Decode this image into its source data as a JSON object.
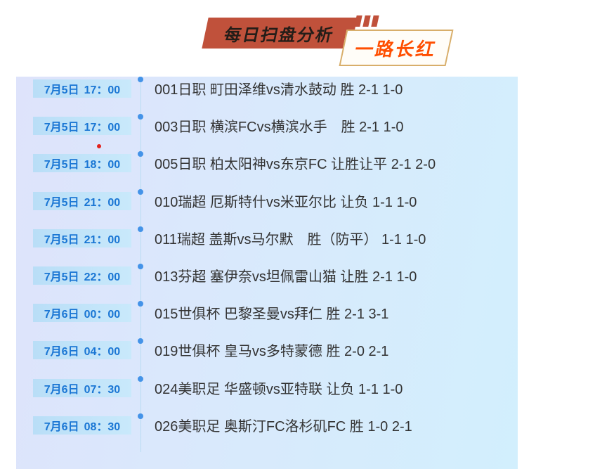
{
  "header": {
    "title": "每日扫盘分析",
    "badge": "一路长红"
  },
  "colors": {
    "banner_red": "#c0513b",
    "badge_orange": "#ff4e00",
    "badge_gold_border": "#d8ae6a",
    "panel_gradient_left": "#dee3fb",
    "panel_gradient_right": "#d2effd",
    "chip_background": "#bfe1f8",
    "chip_text_blue": "#1a76d4",
    "timeline_dot_blue": "#4493e8",
    "timeline_line_blue": "#b9dcf3",
    "stray_red_dot": "#e2211c",
    "match_text": "#333333"
  },
  "timeline": {
    "rows": [
      {
        "date": "7月5日",
        "time": "17：00",
        "text": "001日职 町田泽维vs清水鼓动 胜 2-1 1-0"
      },
      {
        "date": "7月5日",
        "time": "17：00",
        "text": "003日职 横滨FCvs横滨水手　胜 2-1 1-0"
      },
      {
        "date": "7月5日",
        "time": "18：00",
        "text": "005日职 柏太阳神vs东京FC 让胜让平 2-1 2-0"
      },
      {
        "date": "7月5日",
        "time": "21：00",
        "text": "010瑞超 厄斯特什vs米亚尔比 让负 1-1 1-0"
      },
      {
        "date": "7月5日",
        "time": "21：00",
        "text": "011瑞超 盖斯vs马尔默　胜（防平） 1-1 1-0"
      },
      {
        "date": "7月5日",
        "time": "22：00",
        "text": "013芬超 塞伊奈vs坦佩雷山猫 让胜 2-1 1-0"
      },
      {
        "date": "7月6日",
        "time": "00：00",
        "text": "015世俱杯 巴黎圣曼vs拜仁 胜 2-1 3-1"
      },
      {
        "date": "7月6日",
        "time": "04：00",
        "text": "019世俱杯 皇马vs多特蒙德 胜 2-0 2-1"
      },
      {
        "date": "7月6日",
        "time": "07：30",
        "text": "024美职足 华盛顿vs亚特联 让负 1-1 1-0"
      },
      {
        "date": "7月6日",
        "time": "08：30",
        "text": "026美职足 奥斯汀FC洛杉矶FC 胜 1-0 2-1"
      }
    ]
  }
}
